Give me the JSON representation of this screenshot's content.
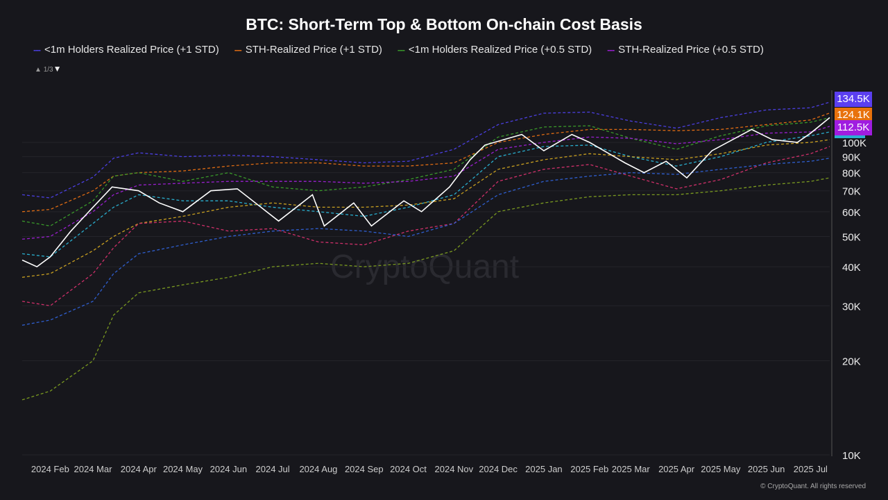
{
  "chart_data": {
    "type": "line",
    "title": "BTC: Short-Term Top & Bottom On-chain Cost Basis",
    "y_scale": "log",
    "ylim": [
      10000,
      150000
    ],
    "y_ticks": [
      {
        "v": 10000,
        "label": "10K"
      },
      {
        "v": 20000,
        "label": "20K"
      },
      {
        "v": 30000,
        "label": "30K"
      },
      {
        "v": 40000,
        "label": "40K"
      },
      {
        "v": 50000,
        "label": "50K"
      },
      {
        "v": 60000,
        "label": "60K"
      },
      {
        "v": 70000,
        "label": "70K"
      },
      {
        "v": 80000,
        "label": "80K"
      },
      {
        "v": 90000,
        "label": "90K"
      },
      {
        "v": 100000,
        "label": "100K"
      }
    ],
    "x_range": [
      "2024-01-13",
      "2025-07-14"
    ],
    "x_ticks": [
      {
        "d": "2024-02-01",
        "label": "2024 Feb"
      },
      {
        "d": "2024-03-01",
        "label": "2024 Mar"
      },
      {
        "d": "2024-04-01",
        "label": "2024 Apr"
      },
      {
        "d": "2024-05-01",
        "label": "2024 May"
      },
      {
        "d": "2024-06-01",
        "label": "2024 Jun"
      },
      {
        "d": "2024-07-01",
        "label": "2024 Jul"
      },
      {
        "d": "2024-08-01",
        "label": "2024 Aug"
      },
      {
        "d": "2024-09-01",
        "label": "2024 Sep"
      },
      {
        "d": "2024-10-01",
        "label": "2024 Oct"
      },
      {
        "d": "2024-11-01",
        "label": "2024 Nov"
      },
      {
        "d": "2024-12-01",
        "label": "2024 Dec"
      },
      {
        "d": "2025-01-01",
        "label": "2025 Jan"
      },
      {
        "d": "2025-02-01",
        "label": "2025 Feb"
      },
      {
        "d": "2025-03-01",
        "label": "2025 Mar"
      },
      {
        "d": "2025-04-01",
        "label": "2025 Apr"
      },
      {
        "d": "2025-05-01",
        "label": "2025 May"
      },
      {
        "d": "2025-06-01",
        "label": "2025 Jun"
      },
      {
        "d": "2025-07-01",
        "label": "2025 Jul"
      }
    ],
    "grid": true,
    "legend_placement": "top-left",
    "dates": [
      "2024-01-13",
      "2024-02-01",
      "2024-03-01",
      "2024-03-15",
      "2024-04-01",
      "2024-05-01",
      "2024-06-01",
      "2024-07-01",
      "2024-08-01",
      "2024-09-01",
      "2024-10-01",
      "2024-11-01",
      "2024-12-01",
      "2025-01-01",
      "2025-02-01",
      "2025-03-01",
      "2025-04-01",
      "2025-05-01",
      "2025-06-01",
      "2025-07-01",
      "2025-07-14"
    ],
    "series": [
      {
        "name": "<1m Holders Realized Price (+1 STD)",
        "color": "#4b3fe0",
        "dashed": true,
        "values": [
          68000,
          66400,
          77400,
          89000,
          92600,
          90000,
          91000,
          90000,
          88000,
          86000,
          87000,
          95000,
          114000,
          124000,
          125000,
          117000,
          111000,
          120000,
          127000,
          129000,
          134500
        ]
      },
      {
        "name": "STH-Realized Price (+1 STD)",
        "color": "#e06c13",
        "dashed": true,
        "values": [
          60000,
          61000,
          70000,
          78000,
          80000,
          81000,
          84000,
          86000,
          86000,
          84000,
          84000,
          86000,
          100000,
          106000,
          110000,
          110000,
          109000,
          110000,
          114000,
          118000,
          124100
        ]
      },
      {
        "name": "<1m Holders Realized Price (+0.5 STD)",
        "color": "#3a9a2a",
        "dashed": true,
        "values": [
          56000,
          54000,
          65000,
          78000,
          80000,
          75000,
          80000,
          72000,
          70000,
          72000,
          76000,
          82000,
          104000,
          112000,
          113000,
          103000,
          95000,
          105000,
          113000,
          116000,
          120000
        ]
      },
      {
        "name": "STH-Realized Price (+0.5 STD)",
        "color": "#9a1fd0",
        "dashed": true,
        "values": [
          49000,
          50000,
          60000,
          68000,
          73000,
          74000,
          75000,
          75000,
          75000,
          74000,
          75000,
          78000,
          95000,
          100000,
          104000,
          103000,
          99000,
          102000,
          107000,
          108000,
          112500
        ]
      },
      {
        "color": "#2ab0d0",
        "dashed": true,
        "values": [
          44000,
          43000,
          55000,
          62000,
          68000,
          65000,
          65000,
          62000,
          60000,
          58000,
          62000,
          68000,
          90000,
          97000,
          98000,
          90000,
          84000,
          90000,
          100000,
          105000,
          108000
        ]
      },
      {
        "color": "#c9a020",
        "dashed": true,
        "values": [
          37000,
          38000,
          45000,
          50000,
          55000,
          58000,
          62000,
          64000,
          62000,
          62000,
          63000,
          66000,
          82000,
          88000,
          92000,
          90000,
          88000,
          92000,
          98000,
          100000,
          102000
        ]
      },
      {
        "color": "#d0306a",
        "dashed": true,
        "values": [
          31000,
          30000,
          38000,
          46000,
          55000,
          56000,
          52000,
          53000,
          48000,
          47000,
          52000,
          55000,
          75000,
          82000,
          85000,
          78000,
          71000,
          76000,
          86000,
          92000,
          97000
        ]
      },
      {
        "color": "#2f5fd0",
        "dashed": true,
        "values": [
          26000,
          27000,
          31000,
          38000,
          44000,
          47000,
          50000,
          52000,
          53000,
          52000,
          50000,
          55000,
          68000,
          75000,
          78000,
          80000,
          79000,
          82000,
          85000,
          87000,
          89000
        ]
      },
      {
        "color": "#7a9a20",
        "dashed": true,
        "values": [
          15000,
          16000,
          20000,
          28000,
          33000,
          35000,
          37000,
          40000,
          41000,
          40000,
          41000,
          45000,
          60000,
          64000,
          67000,
          68000,
          68000,
          70000,
          73000,
          75000,
          77000
        ]
      }
    ],
    "price": {
      "color": "#ffffff",
      "dates": [
        "2024-01-13",
        "2024-01-23",
        "2024-02-01",
        "2024-02-15",
        "2024-03-01",
        "2024-03-14",
        "2024-04-01",
        "2024-04-15",
        "2024-05-01",
        "2024-05-20",
        "2024-06-07",
        "2024-07-05",
        "2024-07-28",
        "2024-08-05",
        "2024-08-25",
        "2024-09-06",
        "2024-09-28",
        "2024-10-10",
        "2024-10-29",
        "2024-11-12",
        "2024-11-22",
        "2024-12-17",
        "2025-01-01",
        "2025-01-20",
        "2025-02-01",
        "2025-02-25",
        "2025-03-10",
        "2025-03-25",
        "2025-04-08",
        "2025-04-25",
        "2025-05-22",
        "2025-06-05",
        "2025-06-22",
        "2025-07-01",
        "2025-07-14"
      ],
      "values": [
        42000,
        40000,
        43000,
        52000,
        62000,
        72000,
        70000,
        64000,
        60000,
        70000,
        71000,
        56000,
        68000,
        54000,
        64000,
        54000,
        65000,
        60000,
        72000,
        88000,
        98000,
        106000,
        94000,
        106000,
        100000,
        86000,
        80000,
        87000,
        77000,
        94000,
        110000,
        102000,
        100000,
        107000,
        120000
      ]
    },
    "last_value_badges": [
      {
        "label": "134.5K",
        "color": "#5b3ff0"
      },
      {
        "label": "124.1K",
        "color": "#e8720c"
      },
      {
        "label": "112.5K",
        "color": "#a01de0"
      }
    ]
  },
  "legend_pager": "1/3",
  "watermark": "CryptoQuant",
  "copyright": "© CryptoQuant. All rights reserved"
}
